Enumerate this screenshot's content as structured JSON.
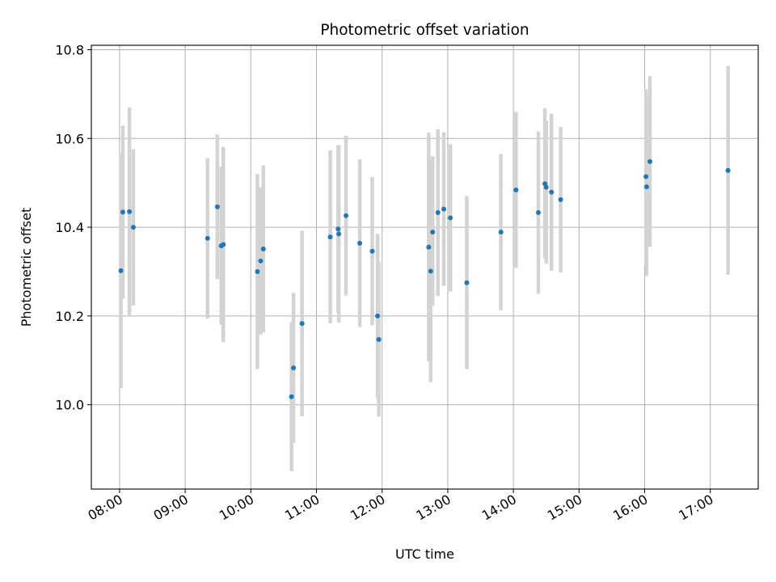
{
  "chart_data": {
    "type": "scatter",
    "title": "Photometric offset variation",
    "xlabel": "UTC time",
    "ylabel": "Photometric offset",
    "x_unit": "hours UTC",
    "xlim": [
      7.57,
      17.73
    ],
    "ylim": [
      9.81,
      10.81
    ],
    "grid": true,
    "x_ticks": [
      {
        "value": 8,
        "label": "08:00"
      },
      {
        "value": 9,
        "label": "09:00"
      },
      {
        "value": 10,
        "label": "10:00"
      },
      {
        "value": 11,
        "label": "11:00"
      },
      {
        "value": 12,
        "label": "12:00"
      },
      {
        "value": 13,
        "label": "13:00"
      },
      {
        "value": 14,
        "label": "14:00"
      },
      {
        "value": 15,
        "label": "15:00"
      },
      {
        "value": 16,
        "label": "16:00"
      },
      {
        "value": 17,
        "label": "17:00"
      }
    ],
    "y_ticks": [
      {
        "value": 10.0,
        "label": "10.0"
      },
      {
        "value": 10.2,
        "label": "10.2"
      },
      {
        "value": 10.4,
        "label": "10.4"
      },
      {
        "value": 10.6,
        "label": "10.6"
      },
      {
        "value": 10.8,
        "label": "10.8"
      }
    ],
    "colors": {
      "marker": "#1f77b4",
      "errorbar": "#d3d3d3",
      "grid": "#b0b0b0"
    },
    "points": [
      {
        "x": 8.02,
        "y": 10.302,
        "lo": 10.037,
        "hi": 10.567
      },
      {
        "x": 8.05,
        "y": 10.434,
        "lo": 10.239,
        "hi": 10.629
      },
      {
        "x": 8.15,
        "y": 10.435,
        "lo": 10.2,
        "hi": 10.67
      },
      {
        "x": 8.21,
        "y": 10.4,
        "lo": 10.224,
        "hi": 10.576
      },
      {
        "x": 9.34,
        "y": 10.375,
        "lo": 10.194,
        "hi": 10.556
      },
      {
        "x": 9.49,
        "y": 10.446,
        "lo": 10.283,
        "hi": 10.609
      },
      {
        "x": 9.55,
        "y": 10.358,
        "lo": 10.18,
        "hi": 10.536
      },
      {
        "x": 9.58,
        "y": 10.361,
        "lo": 10.141,
        "hi": 10.581
      },
      {
        "x": 10.1,
        "y": 10.3,
        "lo": 10.08,
        "hi": 10.52
      },
      {
        "x": 10.15,
        "y": 10.324,
        "lo": 10.158,
        "hi": 10.49
      },
      {
        "x": 10.19,
        "y": 10.351,
        "lo": 10.163,
        "hi": 10.539
      },
      {
        "x": 10.62,
        "y": 10.018,
        "lo": 9.85,
        "hi": 10.186
      },
      {
        "x": 10.65,
        "y": 10.083,
        "lo": 9.914,
        "hi": 10.252
      },
      {
        "x": 10.78,
        "y": 10.183,
        "lo": 9.974,
        "hi": 10.392
      },
      {
        "x": 11.21,
        "y": 10.378,
        "lo": 10.183,
        "hi": 10.573
      },
      {
        "x": 11.33,
        "y": 10.396,
        "lo": 10.207,
        "hi": 10.585
      },
      {
        "x": 11.34,
        "y": 10.385,
        "lo": 10.185,
        "hi": 10.585
      },
      {
        "x": 11.45,
        "y": 10.426,
        "lo": 10.246,
        "hi": 10.606
      },
      {
        "x": 11.66,
        "y": 10.364,
        "lo": 10.175,
        "hi": 10.553
      },
      {
        "x": 11.85,
        "y": 10.346,
        "lo": 10.179,
        "hi": 10.513
      },
      {
        "x": 11.93,
        "y": 10.2,
        "lo": 10.015,
        "hi": 10.385
      },
      {
        "x": 11.95,
        "y": 10.147,
        "lo": 9.973,
        "hi": 10.321
      },
      {
        "x": 12.71,
        "y": 10.355,
        "lo": 10.097,
        "hi": 10.613
      },
      {
        "x": 12.74,
        "y": 10.301,
        "lo": 10.051,
        "hi": 10.551
      },
      {
        "x": 12.77,
        "y": 10.389,
        "lo": 10.223,
        "hi": 10.56
      },
      {
        "x": 12.85,
        "y": 10.433,
        "lo": 10.245,
        "hi": 10.621
      },
      {
        "x": 12.94,
        "y": 10.441,
        "lo": 10.268,
        "hi": 10.614
      },
      {
        "x": 13.04,
        "y": 10.421,
        "lo": 10.255,
        "hi": 10.587
      },
      {
        "x": 13.29,
        "y": 10.275,
        "lo": 10.08,
        "hi": 10.47
      },
      {
        "x": 13.81,
        "y": 10.389,
        "lo": 10.213,
        "hi": 10.565
      },
      {
        "x": 14.04,
        "y": 10.484,
        "lo": 10.308,
        "hi": 10.66
      },
      {
        "x": 14.38,
        "y": 10.433,
        "lo": 10.25,
        "hi": 10.616
      },
      {
        "x": 14.48,
        "y": 10.498,
        "lo": 10.33,
        "hi": 10.668
      },
      {
        "x": 14.5,
        "y": 10.49,
        "lo": 10.318,
        "hi": 10.64
      },
      {
        "x": 14.58,
        "y": 10.479,
        "lo": 10.302,
        "hi": 10.656
      },
      {
        "x": 14.72,
        "y": 10.462,
        "lo": 10.298,
        "hi": 10.626
      },
      {
        "x": 16.02,
        "y": 10.514,
        "lo": 10.317,
        "hi": 10.711
      },
      {
        "x": 16.03,
        "y": 10.491,
        "lo": 10.29,
        "hi": 10.692
      },
      {
        "x": 16.08,
        "y": 10.548,
        "lo": 10.356,
        "hi": 10.74
      },
      {
        "x": 17.27,
        "y": 10.528,
        "lo": 10.293,
        "hi": 10.763
      }
    ]
  }
}
